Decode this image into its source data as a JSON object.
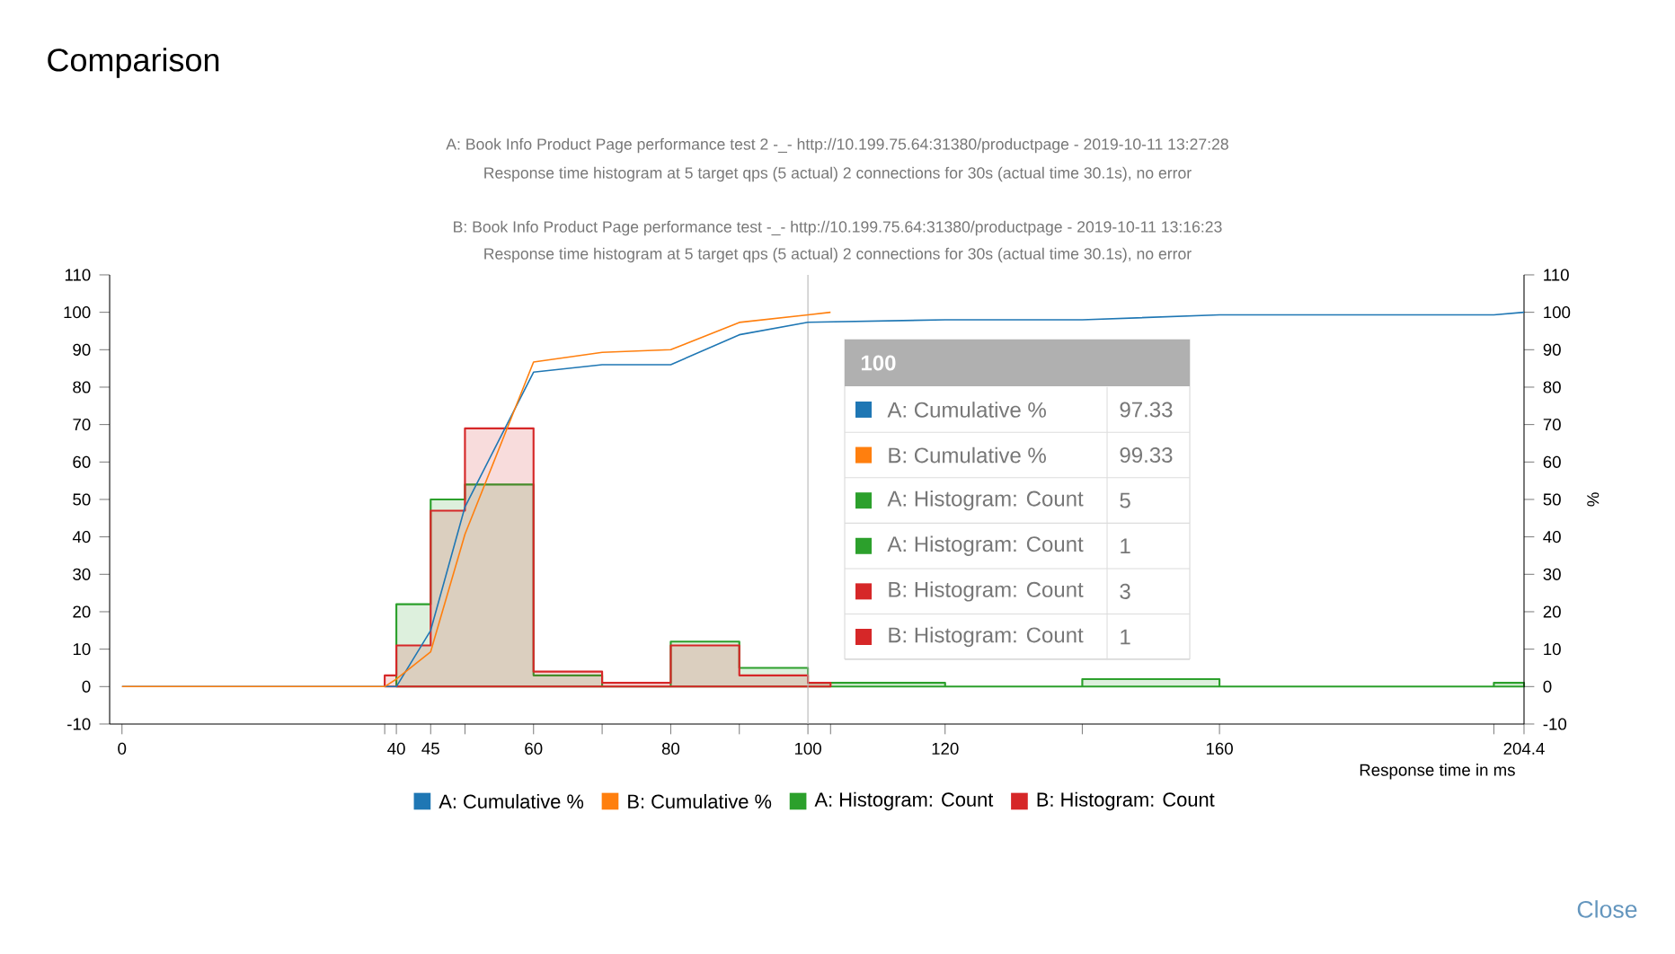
{
  "chart_data": {
    "type": "histogram",
    "title": "Comparison",
    "annotations": [
      "A: Book Info Product Page performance test 2 -_- http://10.199.75.64:31380/productpage - 2019-10-11 13:27:28",
      "Response time histogram at 5 target qps (5 actual) 2 connections for 30s (actual time 30.1s), no error",
      "B: Book Info Product Page performance test -_- http://10.199.75.64:31380/productpage - 2019-10-11 13:16:23",
      "Response time histogram at 5 target qps (5 actual) 2 connections for 30s (actual time 30.1s), no error",
      "A: Cumulative %",
      "97.33",
      "B: Cumulative %",
      "99.33",
      "A: Histogram: Count",
      "5",
      "A: Histogram: Count",
      "1",
      "B: Histogram: Count",
      "3",
      "B: Histogram: Count",
      "1",
      "Close"
    ],
    "xlabel": "Response time in ms",
    "y2label": "%",
    "xlim": [
      -1.8,
      204.4
    ],
    "xticks": [
      0,
      {
        "value": 38.3,
        "label": null
      },
      40,
      45,
      {
        "value": 50,
        "label": null
      },
      60,
      {
        "value": 70,
        "label": null
      },
      80,
      {
        "value": 90,
        "label": null
      },
      100,
      {
        "value": 103.3,
        "label": null
      },
      120,
      {
        "value": 140,
        "label": null
      },
      160,
      {
        "value": 200,
        "label": null
      },
      204.4
    ],
    "ylim": [
      -10,
      110
    ],
    "yticks": [
      -10,
      0,
      10,
      20,
      30,
      40,
      50,
      60,
      70,
      80,
      90,
      100,
      110
    ],
    "y2lim": [
      -10,
      110
    ],
    "y2ticks": [
      -10,
      0,
      10,
      20,
      30,
      40,
      50,
      60,
      70,
      80,
      90,
      100,
      110
    ],
    "series": [
      {
        "name": "A: Cumulative %",
        "type": "line",
        "axis": "y2",
        "color": "#1f77b4",
        "x": [
          0,
          40,
          45,
          50,
          60,
          70,
          80,
          90,
          100,
          120,
          140,
          160,
          200,
          204.4
        ],
        "values": [
          0,
          0,
          15,
          48,
          84,
          86,
          86,
          94,
          97.33,
          98,
          98,
          99.3,
          99.3,
          100
        ]
      },
      {
        "name": "B: Cumulative %",
        "type": "line",
        "axis": "y2",
        "color": "#ff7f0e",
        "x": [
          0,
          38.3,
          40,
          45,
          50,
          60,
          70,
          80,
          90,
          100,
          103.3
        ],
        "values": [
          0,
          0,
          2,
          9.3,
          40.7,
          86.7,
          89.3,
          90,
          97.3,
          99.33,
          100
        ]
      },
      {
        "name": "A: Histogram: Count",
        "color": "#2ca02c",
        "bins": [
          40,
          45,
          50,
          60,
          70,
          80,
          90,
          100,
          120,
          140,
          160,
          200,
          204.4
        ],
        "values": [
          22,
          50,
          54,
          3,
          0,
          12,
          5,
          1,
          0,
          2,
          0,
          1
        ]
      },
      {
        "name": "B: Histogram: Count",
        "color": "#d62728",
        "bins": [
          38.3,
          40,
          45,
          50,
          60,
          70,
          80,
          90,
          100,
          103.3
        ],
        "values": [
          3,
          11,
          47,
          69,
          4,
          1,
          11,
          3,
          1
        ]
      }
    ],
    "ref_lines": [
      {
        "axis": "x",
        "value": 100,
        "label": "100",
        "color": "#b4b4b4"
      }
    ],
    "legend": "bottom",
    "grid": false,
    "marker": "none",
    "line_style": "solid"
  }
}
